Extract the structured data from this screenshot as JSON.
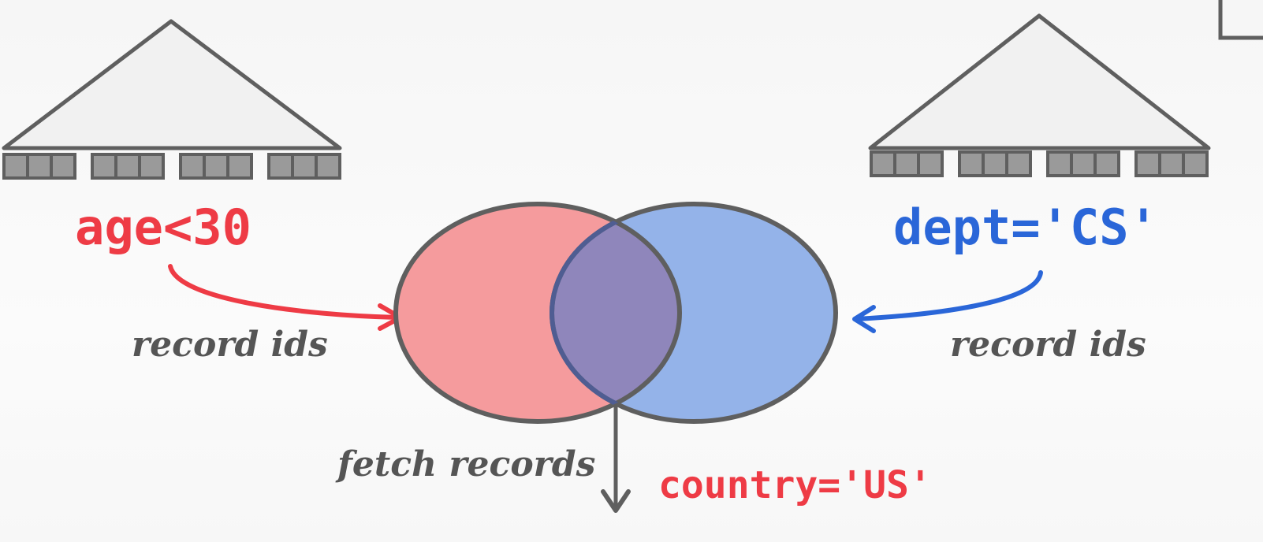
{
  "left_index": {
    "predicate": "age<30",
    "edge_label": "record ids"
  },
  "right_index": {
    "predicate": "dept='CS'",
    "edge_label": "record ids"
  },
  "intersection": {
    "output_label": "fetch records",
    "filter_predicate": "country='US'"
  },
  "colors": {
    "red": "#ee3b45",
    "blue": "#2a66d8",
    "stroke": "#5f5f5f",
    "red_fill": "#f59b9d",
    "blue_fill": "#94b3e9",
    "overlap_fill": "#8f86bb"
  }
}
